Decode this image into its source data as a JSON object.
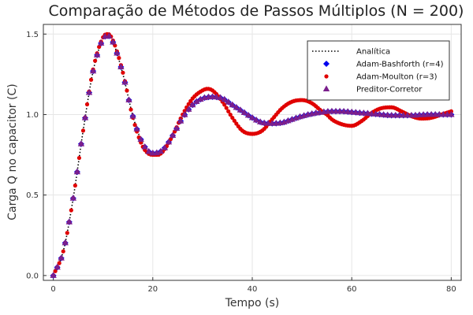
{
  "chart_data": {
    "type": "scatter",
    "title": "Comparação de Métodos de Passos Múltiplos (N = 200)",
    "xlabel": "Tempo (s)",
    "ylabel": "Carga Q no capacitor (C)",
    "xlim": [
      -2,
      82
    ],
    "ylim": [
      -0.03,
      1.56
    ],
    "xticks": [
      0,
      20,
      40,
      60,
      80
    ],
    "xtick_labels": [
      "0",
      "20",
      "40",
      "60",
      "80"
    ],
    "yticks": [
      0.0,
      0.5,
      1.0,
      1.5
    ],
    "ytick_labels": [
      "0.0",
      "0.5",
      "1.0",
      "1.5"
    ],
    "grid": true,
    "legend_position": "top-right",
    "series": [
      {
        "name": "Analítica",
        "style": "dotted-line",
        "color": "#000000",
        "x": [
          0,
          2,
          4,
          6,
          8,
          10,
          11,
          12,
          14,
          16,
          18,
          20,
          22,
          24,
          26,
          28,
          30,
          32,
          34,
          36,
          38,
          40,
          42,
          44,
          46,
          48,
          50,
          52,
          54,
          56,
          58,
          60,
          62,
          64,
          66,
          68,
          70,
          72,
          74,
          76,
          78,
          80
        ],
        "y": [
          0.0,
          0.15,
          0.48,
          0.9,
          1.27,
          1.47,
          1.49,
          1.45,
          1.25,
          0.99,
          0.82,
          0.76,
          0.78,
          0.87,
          0.98,
          1.06,
          1.1,
          1.11,
          1.1,
          1.06,
          1.02,
          0.98,
          0.95,
          0.945,
          0.95,
          0.97,
          0.99,
          1.005,
          1.015,
          1.02,
          1.02,
          1.015,
          1.01,
          1.005,
          1.0,
          0.995,
          0.995,
          0.995,
          0.998,
          1.0,
          1.0,
          1.0
        ]
      },
      {
        "name": "Adam-Bashforth (r=4)",
        "marker": "diamond",
        "color": "#0000ee",
        "x": [
          0,
          2,
          4,
          6,
          8,
          10,
          11,
          12,
          14,
          16,
          18,
          20,
          22,
          24,
          26,
          28,
          30,
          32,
          34,
          36,
          38,
          40,
          42,
          44,
          46,
          48,
          50,
          52,
          54,
          56,
          58,
          60,
          62,
          64,
          66,
          68,
          70,
          72,
          74,
          76,
          78,
          80
        ],
        "y": [
          0.0,
          0.15,
          0.48,
          0.9,
          1.27,
          1.47,
          1.49,
          1.45,
          1.25,
          0.99,
          0.82,
          0.76,
          0.78,
          0.87,
          0.98,
          1.06,
          1.1,
          1.11,
          1.1,
          1.06,
          1.02,
          0.98,
          0.95,
          0.945,
          0.95,
          0.97,
          0.99,
          1.005,
          1.015,
          1.02,
          1.02,
          1.015,
          1.01,
          1.005,
          1.0,
          0.995,
          0.995,
          0.995,
          0.998,
          1.0,
          1.0,
          1.0
        ]
      },
      {
        "name": "Adam-Moulton (r=3)",
        "marker": "circle",
        "color": "#e00000",
        "x": [
          0,
          2,
          4,
          6,
          8,
          10,
          11,
          12,
          14,
          16,
          18,
          20,
          21,
          22,
          24,
          26,
          28,
          30,
          31,
          32,
          34,
          36,
          38,
          40,
          42,
          44,
          46,
          48,
          50,
          52,
          54,
          55,
          56,
          58,
          60,
          62,
          64,
          66,
          68,
          70,
          72,
          74,
          76,
          78,
          80
        ],
        "y": [
          0.0,
          0.15,
          0.48,
          0.9,
          1.28,
          1.48,
          1.5,
          1.46,
          1.26,
          0.98,
          0.8,
          0.75,
          0.75,
          0.77,
          0.87,
          1.0,
          1.1,
          1.15,
          1.16,
          1.15,
          1.08,
          0.98,
          0.9,
          0.88,
          0.9,
          0.97,
          1.04,
          1.08,
          1.09,
          1.07,
          1.02,
          1.0,
          0.97,
          0.94,
          0.93,
          0.96,
          1.01,
          1.04,
          1.045,
          1.02,
          0.99,
          0.975,
          0.98,
          1.0,
          1.02
        ]
      },
      {
        "name": "Preditor-Corretor",
        "marker": "triangle",
        "color": "#7a1f8c",
        "x": [
          0,
          2,
          4,
          6,
          8,
          10,
          11,
          12,
          14,
          16,
          18,
          20,
          22,
          24,
          26,
          28,
          30,
          32,
          34,
          36,
          38,
          40,
          42,
          44,
          46,
          48,
          50,
          52,
          54,
          56,
          58,
          60,
          62,
          64,
          66,
          68,
          70,
          72,
          74,
          76,
          78,
          80
        ],
        "y": [
          0.0,
          0.15,
          0.48,
          0.9,
          1.27,
          1.47,
          1.49,
          1.45,
          1.25,
          0.99,
          0.82,
          0.76,
          0.78,
          0.87,
          0.98,
          1.06,
          1.1,
          1.11,
          1.1,
          1.06,
          1.02,
          0.98,
          0.95,
          0.945,
          0.95,
          0.97,
          0.99,
          1.005,
          1.015,
          1.02,
          1.02,
          1.015,
          1.01,
          1.005,
          1.0,
          0.995,
          0.995,
          0.995,
          0.998,
          1.0,
          1.0,
          1.0
        ]
      }
    ]
  }
}
